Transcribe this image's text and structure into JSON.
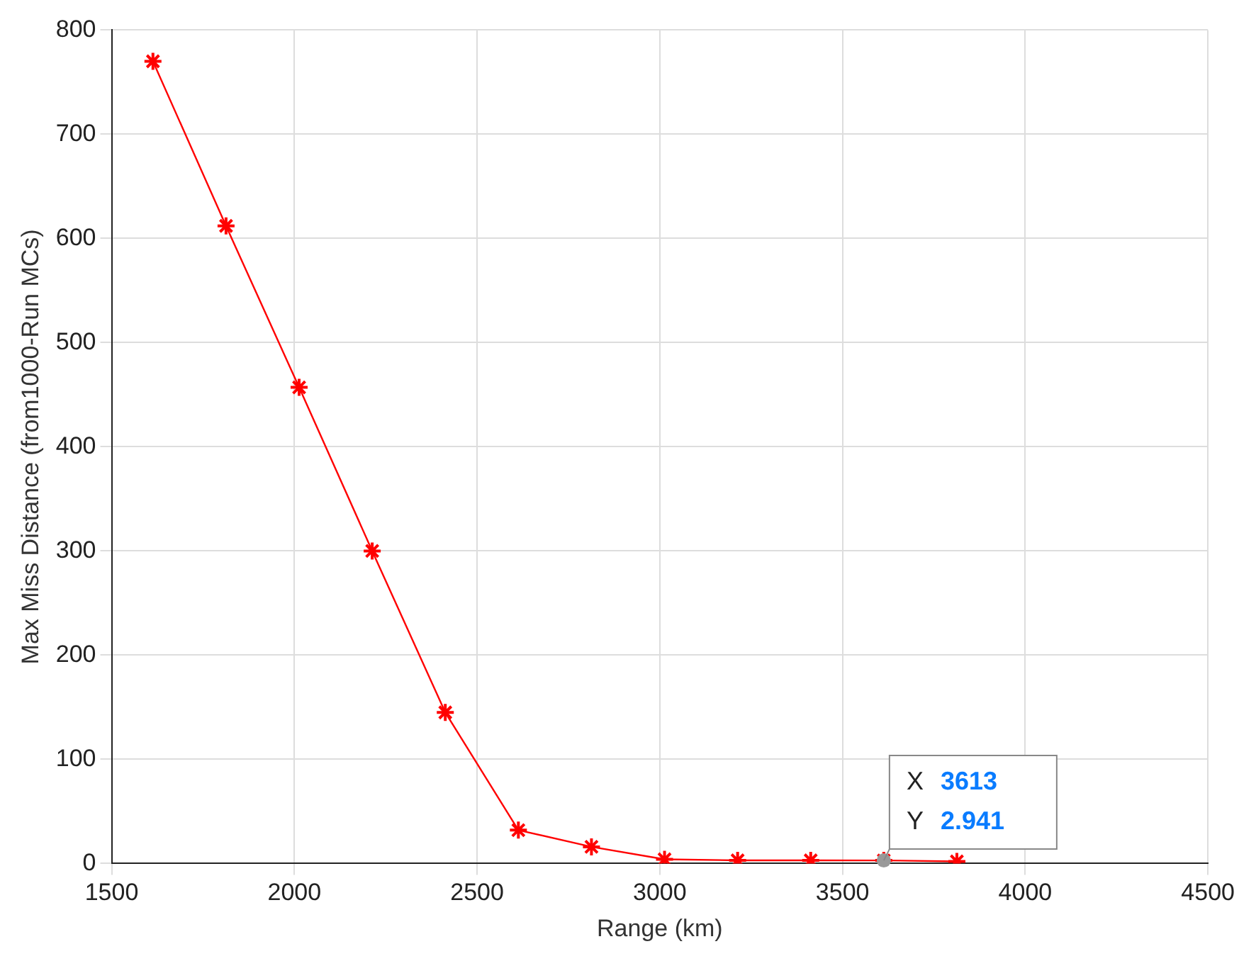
{
  "chart_data": {
    "type": "line",
    "xlabel": "Range (km)",
    "ylabel": "Max Miss Distance (from1000-Run MCs)",
    "x": [
      1613,
      1813,
      2013,
      2213,
      2413,
      2613,
      2813,
      3013,
      3213,
      3413,
      3613,
      3813
    ],
    "series": [
      {
        "color": "#ff0000",
        "values": [
          770,
          612,
          457,
          300,
          145,
          32,
          16,
          4,
          3,
          3,
          2.941,
          2
        ]
      }
    ],
    "xlim": [
      1500,
      4500
    ],
    "xticks": [
      1500,
      2000,
      2500,
      3000,
      3500,
      4000,
      4500
    ],
    "ylim": [
      0,
      800
    ],
    "yticks": [
      0,
      100,
      200,
      300,
      400,
      500,
      600,
      700,
      800
    ],
    "grid": true,
    "legend": false,
    "marker": "cross",
    "line_style": "solid",
    "annotations": [
      {
        "text": "X 3613\nY 2.941",
        "x": 3613,
        "y": 2.941
      }
    ]
  }
}
